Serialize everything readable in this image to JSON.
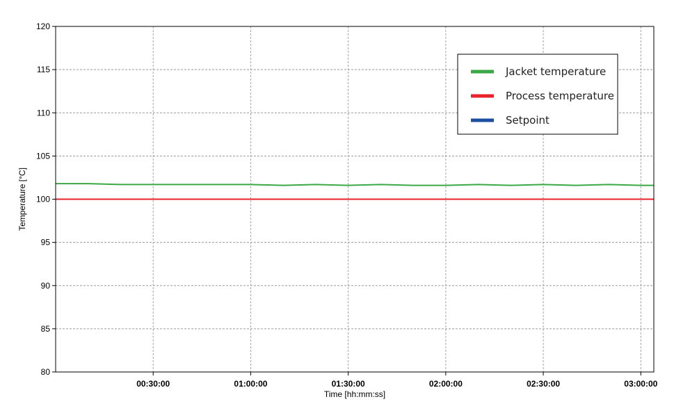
{
  "chart_data": {
    "type": "line",
    "xlabel": "Time [hh:mm:ss]",
    "ylabel": "Temperature [°C]",
    "xlim": [
      "00:00:00",
      "03:04:00"
    ],
    "ylim": [
      80,
      120
    ],
    "x_ticks": [
      "00:30:00",
      "01:00:00",
      "01:30:00",
      "02:00:00",
      "02:30:00",
      "03:00:00"
    ],
    "y_ticks": [
      80,
      85,
      90,
      95,
      100,
      105,
      110,
      115,
      120
    ],
    "grid": true,
    "legend_position": "top-right",
    "series": [
      {
        "name": "Jacket temperature",
        "color": "#3aa845",
        "x": [
          "00:00:00",
          "00:10:00",
          "00:20:00",
          "00:30:00",
          "00:40:00",
          "00:50:00",
          "01:00:00",
          "01:10:00",
          "01:20:00",
          "01:30:00",
          "01:40:00",
          "01:50:00",
          "02:00:00",
          "02:10:00",
          "02:20:00",
          "02:30:00",
          "02:40:00",
          "02:50:00",
          "03:00:00",
          "03:04:00"
        ],
        "values": [
          101.8,
          101.8,
          101.7,
          101.7,
          101.7,
          101.7,
          101.7,
          101.6,
          101.7,
          101.6,
          101.7,
          101.6,
          101.6,
          101.7,
          101.6,
          101.7,
          101.6,
          101.7,
          101.6,
          101.6
        ]
      },
      {
        "name": "Process temperature",
        "color": "#e8222a",
        "x": [
          "00:00:00",
          "03:04:00"
        ],
        "values": [
          100.0,
          100.0
        ]
      },
      {
        "name": "Setpoint",
        "color": "#1d4fa0",
        "x": [
          "00:00:00",
          "03:04:00"
        ],
        "values": [
          100.0,
          100.0
        ]
      }
    ]
  }
}
